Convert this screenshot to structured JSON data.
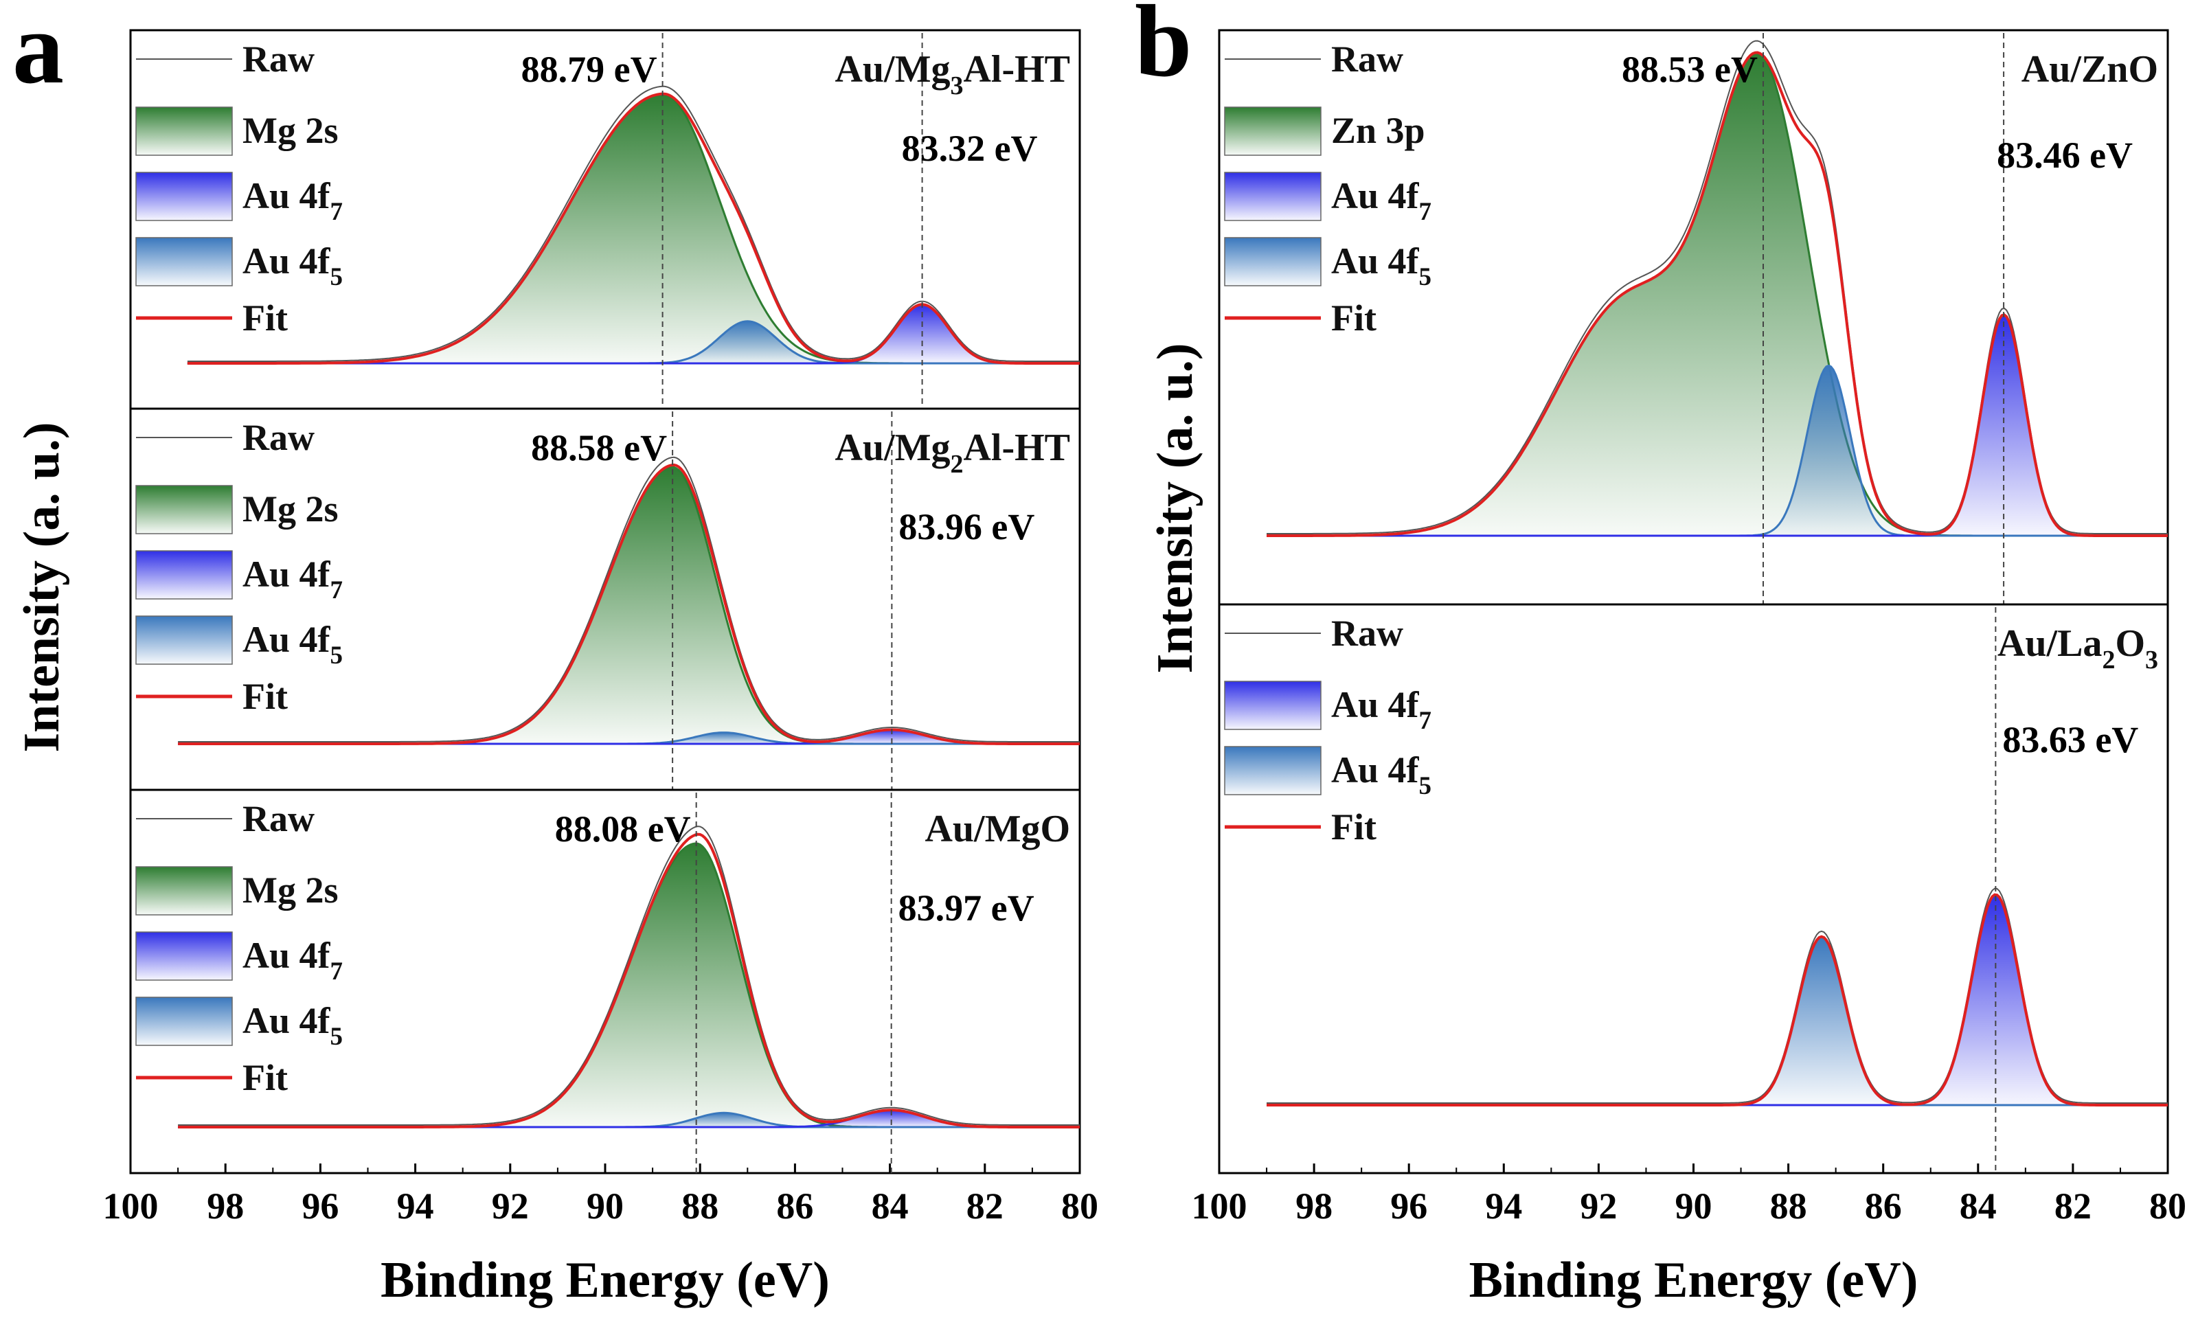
{
  "figure": {
    "x_axis_title": "Binding Energy (eV)",
    "y_axis_title": "Intensity (a. u.)"
  },
  "colors": {
    "raw": "#555555",
    "fit": "#e02020",
    "mg": "#2e7d32",
    "zn": "#2e7d32",
    "au7": "#2f2fe6",
    "au5": "#3a78bd",
    "baseline": "#2f86c9",
    "frame": "#000000"
  },
  "chart_data": [
    {
      "panel": "a",
      "type": "line",
      "xlim": [
        100,
        80
      ],
      "x_ticks": [
        100,
        98,
        96,
        94,
        92,
        90,
        88,
        86,
        84,
        82,
        80
      ],
      "xlabel": "Binding Energy (eV)",
      "ylabel": "Intensity (a. u.)",
      "subplots": [
        {
          "sample": "Au/Mg₃Al-HT",
          "legend": [
            "Raw",
            "Mg 2s",
            "Au 4f₇",
            "Au 4f₅",
            "Fit"
          ],
          "x_range": [
            98.8,
            80
          ],
          "series": [
            {
              "name": "Mg 2s",
              "kind": "gauss",
              "center": 88.79,
              "height": 0.96,
              "sigma": 1.2,
              "skew": 0.6
            },
            {
              "name": "Au 4f₅",
              "kind": "gauss",
              "center": 87.0,
              "height": 0.15,
              "sigma": 0.6
            },
            {
              "name": "Au 4f₇",
              "kind": "gauss",
              "center": 83.32,
              "height": 0.21,
              "sigma": 0.55
            }
          ],
          "annotations": [
            {
              "text": "88.79 eV",
              "x": 88.79
            },
            {
              "text": "83.32 eV",
              "x": 83.32
            }
          ]
        },
        {
          "sample": "Au/Mg₂Al-HT",
          "legend": [
            "Raw",
            "Mg 2s",
            "Au 4f₇",
            "Au 4f₅",
            "Fit"
          ],
          "x_range": [
            99,
            80
          ],
          "series": [
            {
              "name": "Mg 2s",
              "kind": "gauss",
              "center": 88.58,
              "height": 0.98,
              "sigma": 0.9,
              "skew": 0.5
            },
            {
              "name": "Au 4f₅",
              "kind": "gauss",
              "center": 87.5,
              "height": 0.04,
              "sigma": 0.6
            },
            {
              "name": "Au 4f₇",
              "kind": "gauss",
              "center": 83.96,
              "height": 0.05,
              "sigma": 0.7
            }
          ],
          "annotations": [
            {
              "text": "88.58 eV",
              "x": 88.58
            },
            {
              "text": "83.96 eV",
              "x": 83.96
            }
          ]
        },
        {
          "sample": "Au/MgO",
          "legend": [
            "Raw",
            "Mg 2s",
            "Au 4f₇",
            "Au 4f₅",
            "Fit"
          ],
          "x_range": [
            99,
            80
          ],
          "series": [
            {
              "name": "Mg 2s",
              "kind": "gauss",
              "center": 88.08,
              "height": 1.0,
              "sigma": 0.9,
              "skew": 0.5
            },
            {
              "name": "Au 4f₅",
              "kind": "gauss",
              "center": 87.5,
              "height": 0.05,
              "sigma": 0.6
            },
            {
              "name": "Au 4f₇",
              "kind": "gauss",
              "center": 83.97,
              "height": 0.06,
              "sigma": 0.7
            }
          ],
          "annotations": [
            {
              "text": "88.08 eV",
              "x": 88.08
            },
            {
              "text": "83.97 eV",
              "x": 83.97
            }
          ]
        }
      ]
    },
    {
      "panel": "b",
      "type": "line",
      "xlim": [
        100,
        80
      ],
      "x_ticks": [
        100,
        98,
        96,
        94,
        92,
        90,
        88,
        86,
        84,
        82,
        80
      ],
      "xlabel": "Binding Energy (eV)",
      "ylabel": "Intensity (a. u.)",
      "subplots": [
        {
          "sample": "Au/ZnO",
          "legend": [
            "Raw",
            "Zn 3p",
            "Au 4f₇",
            "Au 4f₅",
            "Fit"
          ],
          "x_range": [
            99,
            80
          ],
          "series": [
            {
              "name": "Zn 3p",
              "kind": "sum",
              "parts": [
                {
                  "center": 88.53,
                  "height": 1.0,
                  "sigma": 1.0
                },
                {
                  "center": 91.3,
                  "height": 0.56,
                  "sigma": 1.6
                }
              ]
            },
            {
              "name": "Au 4f₅",
              "kind": "gauss",
              "center": 87.15,
              "height": 0.4,
              "sigma": 0.45
            },
            {
              "name": "Au 4f₇",
              "kind": "gauss",
              "center": 83.46,
              "height": 0.52,
              "sigma": 0.45
            }
          ],
          "annotations": [
            {
              "text": "88.53 eV",
              "x": 88.53
            },
            {
              "text": "83.46 eV",
              "x": 83.46
            }
          ]
        },
        {
          "sample": "Au/La₂O₃",
          "legend": [
            "Raw",
            "Au 4f₇",
            "Au 4f₅",
            "Fit"
          ],
          "x_range": [
            99,
            80
          ],
          "series": [
            {
              "name": "Au 4f₅",
              "kind": "gauss",
              "center": 87.3,
              "height": 0.4,
              "sigma": 0.5
            },
            {
              "name": "Au 4f₇",
              "kind": "gauss",
              "center": 83.63,
              "height": 0.5,
              "sigma": 0.5
            }
          ],
          "annotations": [
            {
              "text": "83.63 eV",
              "x": 83.63
            }
          ]
        }
      ]
    }
  ]
}
